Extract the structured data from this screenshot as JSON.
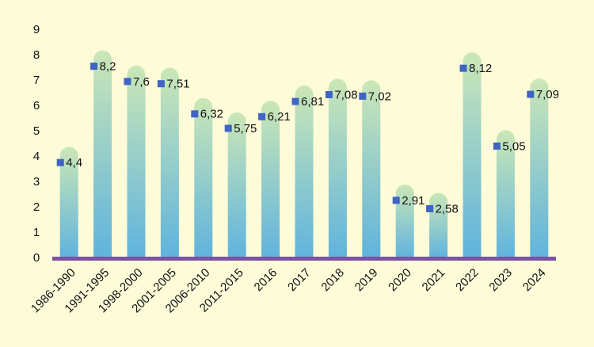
{
  "chart_data": {
    "type": "bar",
    "categories": [
      "1986-1990",
      "1991-1995",
      "1998-2000",
      "2001-2005",
      "2006-2010",
      "2011-2015",
      "2016",
      "2017",
      "2018",
      "2019",
      "2020",
      "2021",
      "2022",
      "2023",
      "2024"
    ],
    "values": [
      4.4,
      8.2,
      7.6,
      7.51,
      6.32,
      5.75,
      6.21,
      6.81,
      7.08,
      7.02,
      2.91,
      2.58,
      8.12,
      5.05,
      7.09
    ],
    "value_labels": [
      "4,4",
      "8,2",
      "7,6",
      "7,51",
      "6,32",
      "5,75",
      "6,21",
      "6,81",
      "7,08",
      "7,02",
      "2,91",
      "2,58",
      "8,12",
      "5,05",
      "7,09"
    ],
    "gradient": [
      "#cbe7b6",
      "#5fb3de"
    ],
    "marker_color": "#3f64c4",
    "axis_color": "#7b52a4",
    "ylim": [
      0,
      9
    ],
    "yticks": [
      0,
      1,
      2,
      3,
      4,
      5,
      6,
      7,
      8,
      9
    ],
    "grid": false
  }
}
